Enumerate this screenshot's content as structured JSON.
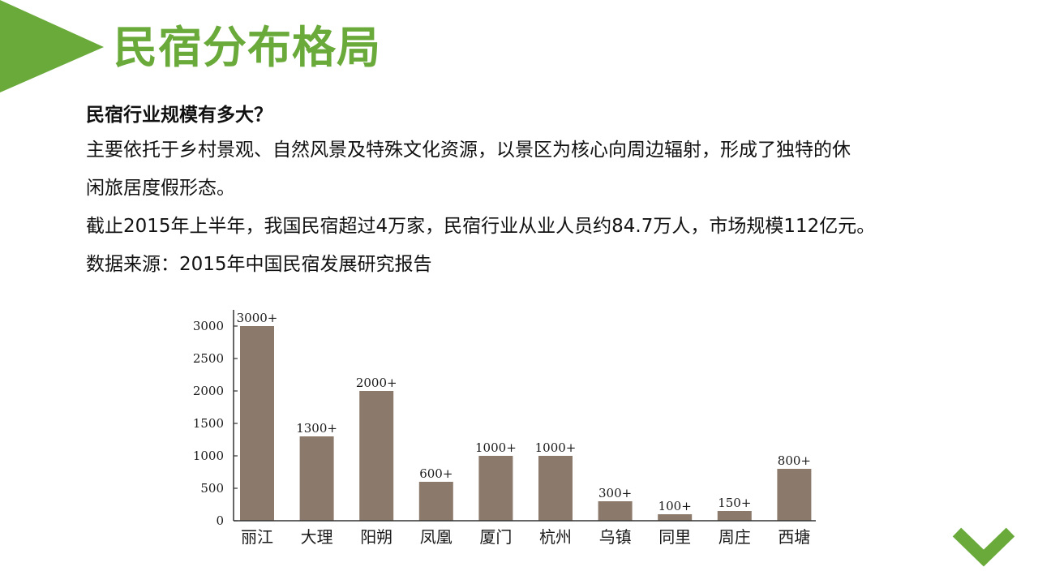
{
  "slide": {
    "title": "民宿分布格局",
    "question": "民宿行业规模有多大？",
    "paragraph_line1": "主要依托于乡村景观、自然风景及特殊文化资源，以景区为核心向周边辐射，形成了独特的休",
    "paragraph_line2": "闲旅居度假形态。",
    "stats_line": "截止2015年上半年，我国民宿超过4万家，民宿行业从业人员约84.7万人，市场规模112亿元。",
    "source_line": "数据来源：2015年中国民宿发展研究报告"
  },
  "colors": {
    "accent": "#6aaa3a",
    "bar": "#8b796b",
    "axis": "#333333"
  },
  "icons": {
    "header_marker": "triangle-right-icon",
    "next": "chevron-down-icon"
  },
  "chart_data": {
    "type": "bar",
    "categories": [
      "丽江",
      "大理",
      "阳朔",
      "凤凰",
      "厦门",
      "杭州",
      "乌镇",
      "同里",
      "周庄",
      "西塘"
    ],
    "values": [
      3000,
      1300,
      2000,
      600,
      1000,
      1000,
      300,
      100,
      150,
      800
    ],
    "data_labels": [
      "3000+",
      "1300+",
      "2000+",
      "600+",
      "1000+",
      "1000+",
      "300+",
      "100+",
      "150+",
      "800+"
    ],
    "yticks": [
      0,
      500,
      1000,
      1500,
      2000,
      2500,
      3000
    ],
    "ylim": [
      0,
      3150
    ],
    "title": "",
    "xlabel": "",
    "ylabel": "",
    "grid": false
  }
}
